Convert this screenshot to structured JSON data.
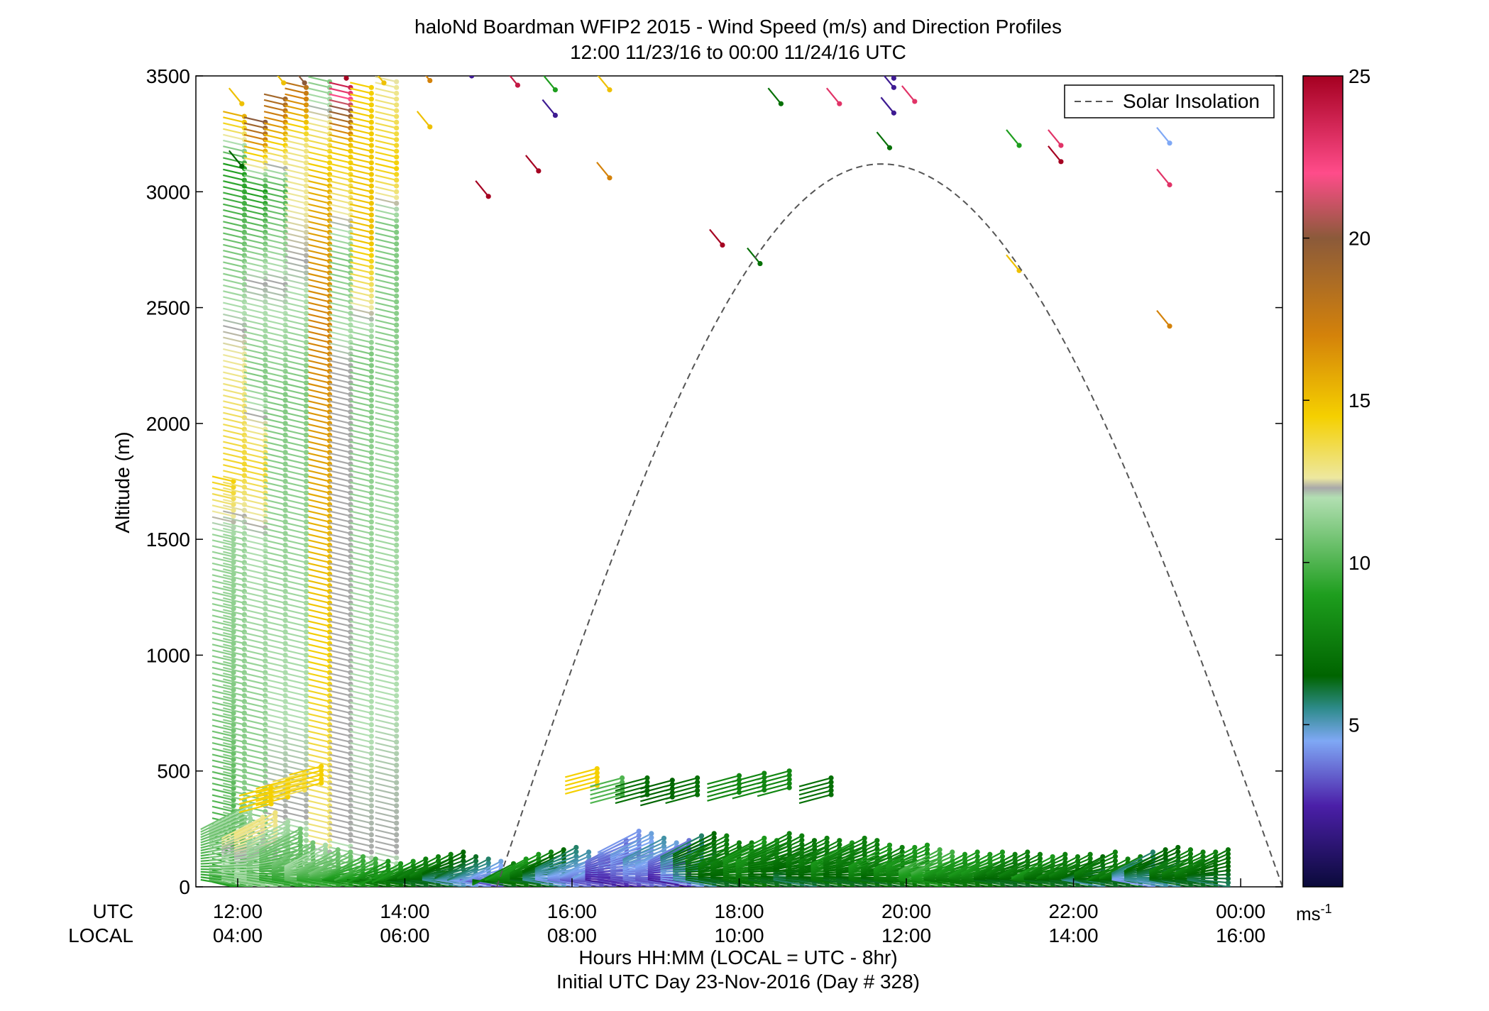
{
  "chart_data": {
    "type": "scatter",
    "title_line1": "haloNd Boardman WFIP2 2015 - Wind Speed (m/s) and Direction Profiles",
    "title_line2": "12:00 11/23/16 to 00:00 11/24/16  UTC",
    "ylabel": "Altitude (m)",
    "xlabel": "Hours HH:MM  (LOCAL = UTC - 8hr)",
    "xlabel2": "Initial UTC Day 23-Nov-2016 (Day # 328)",
    "x_row_label_utc": "UTC",
    "x_row_label_local": "LOCAL",
    "xlim_hours": [
      11.5,
      24.5
    ],
    "ylim": [
      0,
      3500
    ],
    "y_ticks": [
      "0",
      "500",
      "1000",
      "1500",
      "2000",
      "2500",
      "3000",
      "3500"
    ],
    "y_tick_values": [
      0,
      500,
      1000,
      1500,
      2000,
      2500,
      3000,
      3500
    ],
    "x_tick_hours": [
      12,
      14,
      16,
      18,
      20,
      22,
      24
    ],
    "x_ticks_utc": [
      "12:00",
      "14:00",
      "16:00",
      "18:00",
      "20:00",
      "22:00",
      "00:00"
    ],
    "x_ticks_local": [
      "04:00",
      "06:00",
      "08:00",
      "10:00",
      "12:00",
      "14:00",
      "16:00"
    ],
    "legend_label": "Solar Insolation",
    "legend_position": "top-right",
    "colorbar": {
      "range": [
        0,
        25
      ],
      "ticks": [
        "5",
        "10",
        "15",
        "20",
        "25"
      ],
      "tick_values": [
        5,
        10,
        15,
        20,
        25
      ],
      "unit": "ms",
      "unit_exp": "-1",
      "stops": [
        {
          "v": 0,
          "c": "#0a0a3a"
        },
        {
          "v": 2.5,
          "c": "#4b1fa8"
        },
        {
          "v": 4.5,
          "c": "#7fa8f5"
        },
        {
          "v": 5.5,
          "c": "#2e8b8b"
        },
        {
          "v": 6.5,
          "c": "#006400"
        },
        {
          "v": 9,
          "c": "#1e9e1e"
        },
        {
          "v": 12,
          "c": "#b2dfb2"
        },
        {
          "v": 12.3,
          "c": "#a9a9a9"
        },
        {
          "v": 12.6,
          "c": "#ede8a0"
        },
        {
          "v": 14.5,
          "c": "#f5d000"
        },
        {
          "v": 17,
          "c": "#d4820a"
        },
        {
          "v": 20,
          "c": "#8b5a3a"
        },
        {
          "v": 22,
          "c": "#ff4c8a"
        },
        {
          "v": 25,
          "c": "#a50021"
        }
      ]
    },
    "solar_insolation_curve": {
      "start_hour": 15.1,
      "peak_hour": 19.7,
      "end_hour": 24.5,
      "peak_altitude": 3120
    },
    "profiles": [
      {
        "t": 11.95,
        "z0": 0,
        "z1": 1760,
        "dz": 25,
        "speeds": [
          [
            0,
            9
          ],
          [
            300,
            10
          ],
          [
            800,
            11
          ],
          [
            1500,
            11.5
          ],
          [
            1760,
            14.5
          ]
        ]
      },
      {
        "t": 12.08,
        "z0": 0,
        "z1": 3340,
        "dz": 25,
        "speeds": [
          [
            0,
            10
          ],
          [
            300,
            11
          ],
          [
            1500,
            11.5
          ],
          [
            1800,
            14
          ],
          [
            2400,
            12.3
          ],
          [
            2700,
            11
          ],
          [
            3100,
            9
          ],
          [
            3340,
            16
          ]
        ]
      },
      {
        "t": 12.33,
        "z0": 0,
        "z1": 3300,
        "dz": 25,
        "speeds": [
          [
            0,
            9
          ],
          [
            300,
            11
          ],
          [
            1500,
            12
          ],
          [
            1800,
            14
          ],
          [
            2200,
            11
          ],
          [
            2600,
            12.3
          ],
          [
            3000,
            9
          ],
          [
            3300,
            20
          ]
        ]
      },
      {
        "t": 12.57,
        "z0": 0,
        "z1": 3400,
        "dz": 25,
        "speeds": [
          [
            0,
            10
          ],
          [
            300,
            12.3
          ],
          [
            2100,
            11
          ],
          [
            2600,
            12.3
          ],
          [
            3000,
            10
          ],
          [
            3400,
            19
          ]
        ]
      },
      {
        "t": 12.82,
        "z0": 0,
        "z1": 3450,
        "dz": 25,
        "speeds": [
          [
            0,
            10
          ],
          [
            300,
            12.3
          ],
          [
            2150,
            11
          ],
          [
            2700,
            12.3
          ],
          [
            3200,
            13
          ],
          [
            3450,
            18
          ]
        ]
      },
      {
        "t": 13.1,
        "z0": 0,
        "z1": 3480,
        "dz": 25,
        "speeds": [
          [
            0,
            10
          ],
          [
            200,
            13
          ],
          [
            2400,
            17
          ],
          [
            3000,
            15.5
          ],
          [
            3480,
            11
          ]
        ]
      },
      {
        "t": 13.35,
        "z0": 0,
        "z1": 3460,
        "dz": 25,
        "speeds": [
          [
            0,
            10
          ],
          [
            200,
            12.3
          ],
          [
            2250,
            12.3
          ],
          [
            2700,
            11
          ],
          [
            3200,
            15
          ],
          [
            3460,
            24
          ]
        ]
      },
      {
        "t": 13.6,
        "z0": 0,
        "z1": 3460,
        "dz": 25,
        "speeds": [
          [
            0,
            11
          ],
          [
            150,
            12.3
          ],
          [
            2300,
            11
          ],
          [
            2800,
            15
          ],
          [
            3460,
            14.5
          ]
        ]
      },
      {
        "t": 13.9,
        "z0": 0,
        "z1": 3490,
        "dz": 25,
        "speeds": [
          [
            0,
            11
          ],
          [
            150,
            12.3
          ],
          [
            2850,
            11
          ],
          [
            3100,
            14.5
          ],
          [
            3490,
            12.5
          ]
        ]
      }
    ],
    "low_level_times": [
      12.05,
      12.15,
      12.3,
      12.45,
      12.6,
      12.75,
      12.9,
      13.05,
      13.2,
      13.35,
      13.5,
      13.65,
      13.8,
      13.95,
      14.1,
      14.25,
      14.4,
      14.55,
      14.7,
      14.85,
      15.0,
      15.15,
      15.3,
      15.45,
      15.6,
      15.75,
      15.9,
      16.05,
      16.2,
      16.35,
      16.5,
      16.65,
      16.8,
      16.95,
      17.1,
      17.25,
      17.4,
      17.55,
      17.7,
      17.85,
      18.0,
      18.15,
      18.3,
      18.45,
      18.6,
      18.75,
      18.9,
      19.05,
      19.2,
      19.35,
      19.5,
      19.65,
      19.8,
      19.95,
      20.1,
      20.25,
      20.4,
      20.55,
      20.7,
      20.85,
      21.0,
      21.15,
      21.3,
      21.45,
      21.6,
      21.75,
      21.9,
      22.05,
      22.2,
      22.35,
      22.5,
      22.65,
      22.8,
      22.95,
      23.1,
      23.25,
      23.4,
      23.55,
      23.7,
      23.85
    ],
    "low_level_tops": [
      340,
      350,
      300,
      320,
      280,
      250,
      190,
      180,
      160,
      150,
      130,
      120,
      110,
      100,
      110,
      120,
      130,
      140,
      150,
      130,
      120,
      110,
      100,
      120,
      140,
      150,
      160,
      170,
      150,
      140,
      130,
      200,
      240,
      230,
      210,
      190,
      200,
      220,
      230,
      220,
      190,
      190,
      210,
      200,
      230,
      220,
      200,
      210,
      200,
      190,
      210,
      200,
      180,
      170,
      170,
      180,
      160,
      150,
      140,
      150,
      140,
      150,
      140,
      150,
      140,
      130,
      140,
      130,
      140,
      130,
      150,
      120,
      130,
      150,
      160,
      170,
      160,
      150,
      150,
      160
    ],
    "low_level_speeds": [
      10,
      11,
      12,
      12.3,
      11,
      10,
      10,
      11,
      10,
      10,
      9,
      9,
      8,
      8,
      8,
      7,
      7,
      7,
      6,
      5.5,
      5,
      4,
      7,
      8,
      8,
      7,
      6,
      5,
      4.5,
      4,
      4,
      3,
      3.5,
      4,
      4.5,
      4,
      3,
      5,
      6,
      7,
      7,
      7,
      8,
      8,
      7,
      7,
      6.5,
      7,
      7,
      8,
      7,
      7,
      8,
      7,
      8,
      8,
      9,
      9,
      8,
      8,
      8,
      8,
      7,
      7,
      7,
      8,
      7,
      7,
      7,
      6,
      7,
      7,
      7,
      5,
      6,
      6,
      7,
      7,
      7,
      6.5
    ],
    "band_500": [
      {
        "t": 12.4,
        "z": 430,
        "s": 14.5
      },
      {
        "t": 12.6,
        "z": 460,
        "s": 14.5
      },
      {
        "t": 12.8,
        "z": 490,
        "s": 13.5
      },
      {
        "t": 13.0,
        "z": 520,
        "s": 14.5
      },
      {
        "t": 16.3,
        "z": 510,
        "s": 14.5
      },
      {
        "t": 16.6,
        "z": 470,
        "s": 10
      },
      {
        "t": 16.9,
        "z": 470,
        "s": 7
      },
      {
        "t": 17.2,
        "z": 460,
        "s": 6.5
      },
      {
        "t": 17.5,
        "z": 470,
        "s": 7
      },
      {
        "t": 18.0,
        "z": 480,
        "s": 8
      },
      {
        "t": 18.3,
        "z": 490,
        "s": 8
      },
      {
        "t": 18.6,
        "z": 500,
        "s": 8
      },
      {
        "t": 19.1,
        "z": 470,
        "s": 7
      }
    ],
    "sparse_upper": [
      {
        "t": 12.05,
        "z": 3380,
        "s": 15
      },
      {
        "t": 12.05,
        "z": 3110,
        "s": 6.5
      },
      {
        "t": 12.55,
        "z": 3470,
        "s": 15
      },
      {
        "t": 12.8,
        "z": 3470,
        "s": 20
      },
      {
        "t": 13.3,
        "z": 3490,
        "s": 25
      },
      {
        "t": 13.75,
        "z": 3470,
        "s": 15
      },
      {
        "t": 14.3,
        "z": 3480,
        "s": 17
      },
      {
        "t": 14.3,
        "z": 3280,
        "s": 15
      },
      {
        "t": 14.8,
        "z": 3500,
        "s": 2
      },
      {
        "t": 15.0,
        "z": 2980,
        "s": 25
      },
      {
        "t": 15.35,
        "z": 3460,
        "s": 24
      },
      {
        "t": 15.6,
        "z": 3090,
        "s": 25
      },
      {
        "t": 15.8,
        "z": 3440,
        "s": 9
      },
      {
        "t": 15.8,
        "z": 3330,
        "s": 2
      },
      {
        "t": 16.45,
        "z": 3060,
        "s": 17
      },
      {
        "t": 16.45,
        "z": 3440,
        "s": 15
      },
      {
        "t": 17.8,
        "z": 2770,
        "s": 25
      },
      {
        "t": 18.25,
        "z": 2690,
        "s": 7
      },
      {
        "t": 18.5,
        "z": 3380,
        "s": 7
      },
      {
        "t": 19.2,
        "z": 3380,
        "s": 23
      },
      {
        "t": 19.8,
        "z": 3190,
        "s": 7
      },
      {
        "t": 19.85,
        "z": 3490,
        "s": 2
      },
      {
        "t": 19.85,
        "z": 3450,
        "s": 2
      },
      {
        "t": 19.85,
        "z": 3340,
        "s": 2
      },
      {
        "t": 20.1,
        "z": 3390,
        "s": 23
      },
      {
        "t": 21.35,
        "z": 3200,
        "s": 9
      },
      {
        "t": 21.35,
        "z": 2660,
        "s": 15
      },
      {
        "t": 21.85,
        "z": 3200,
        "s": 23
      },
      {
        "t": 21.85,
        "z": 3130,
        "s": 25
      },
      {
        "t": 23.15,
        "z": 3210,
        "s": 4.5
      },
      {
        "t": 23.15,
        "z": 3030,
        "s": 23
      },
      {
        "t": 23.15,
        "z": 2420,
        "s": 17
      }
    ]
  }
}
